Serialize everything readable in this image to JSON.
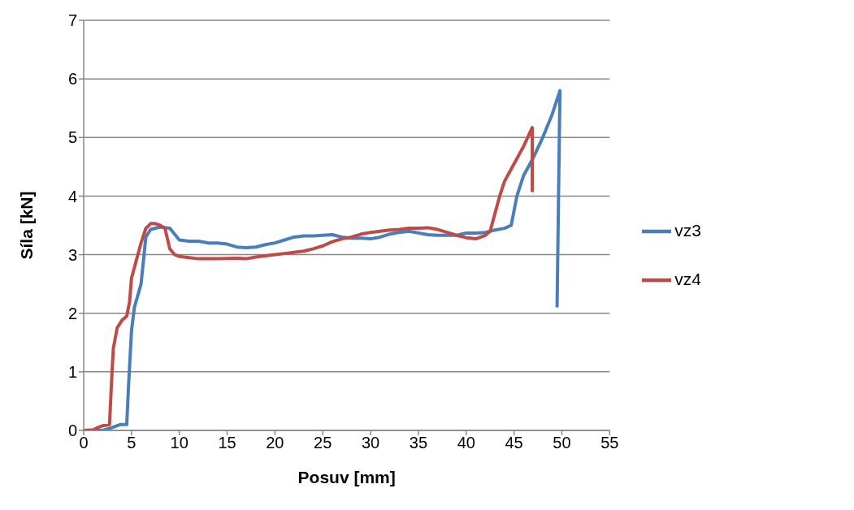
{
  "chart_data": {
    "type": "line",
    "xlabel": "Posuv [mm]",
    "ylabel": "Síla [kN]",
    "xlim": [
      0,
      55
    ],
    "xticks": [
      0,
      5,
      10,
      15,
      20,
      25,
      30,
      35,
      40,
      45,
      50,
      55
    ],
    "ylim": [
      0,
      7
    ],
    "yticks": [
      0,
      1,
      2,
      3,
      4,
      5,
      6,
      7
    ],
    "grid": "y",
    "legend": "right",
    "marker": "none",
    "line_style": "solid",
    "series": [
      {
        "name": "vz3",
        "color": "#4a7ebb",
        "x": [
          0,
          2,
          3,
          3.8,
          4.5,
          4.7,
          5,
          5.3,
          6,
          6.5,
          7,
          8,
          9,
          9.5,
          10,
          11,
          12,
          13,
          14,
          15,
          16,
          17,
          18,
          19,
          20,
          21,
          22,
          23,
          24,
          25,
          26,
          27,
          28,
          29,
          30,
          31,
          32,
          33,
          34,
          35,
          36,
          37,
          38,
          39,
          40,
          41,
          42,
          43,
          44,
          44.7,
          45.3,
          46,
          47,
          48,
          49,
          49.8,
          49.5
        ],
        "values": [
          0,
          0,
          0.05,
          0.1,
          0.1,
          0.8,
          1.7,
          2.1,
          2.5,
          3.3,
          3.43,
          3.47,
          3.45,
          3.35,
          3.25,
          3.23,
          3.23,
          3.2,
          3.2,
          3.18,
          3.13,
          3.12,
          3.13,
          3.17,
          3.2,
          3.25,
          3.3,
          3.32,
          3.32,
          3.33,
          3.34,
          3.3,
          3.28,
          3.28,
          3.27,
          3.3,
          3.35,
          3.38,
          3.4,
          3.37,
          3.34,
          3.33,
          3.33,
          3.33,
          3.37,
          3.37,
          3.38,
          3.42,
          3.45,
          3.5,
          4.0,
          4.35,
          4.65,
          5.0,
          5.4,
          5.8,
          2.1
        ]
      },
      {
        "name": "vz4",
        "color": "#be4b48",
        "x": [
          0,
          1,
          1.5,
          2,
          2.7,
          2.9,
          3.1,
          3.5,
          4,
          4.5,
          4.8,
          5,
          5.5,
          6,
          6.5,
          7,
          7.5,
          8,
          8.5,
          9,
          9.5,
          10,
          11,
          12,
          14,
          16,
          17,
          18,
          19,
          20,
          21,
          22,
          23,
          24,
          25,
          26,
          27,
          28,
          29,
          30,
          31,
          32,
          33,
          34,
          35,
          36,
          37,
          38,
          39,
          40,
          41,
          42,
          42.5,
          43,
          43.5,
          44,
          45,
          46,
          46.9,
          46.9
        ],
        "values": [
          0,
          0.01,
          0.05,
          0.08,
          0.1,
          0.8,
          1.4,
          1.75,
          1.88,
          1.95,
          2.2,
          2.6,
          2.9,
          3.2,
          3.45,
          3.53,
          3.53,
          3.5,
          3.45,
          3.1,
          3.0,
          2.97,
          2.95,
          2.93,
          2.93,
          2.94,
          2.93,
          2.96,
          2.98,
          3.0,
          3.02,
          3.04,
          3.06,
          3.1,
          3.15,
          3.22,
          3.27,
          3.3,
          3.35,
          3.38,
          3.4,
          3.42,
          3.43,
          3.45,
          3.45,
          3.46,
          3.43,
          3.38,
          3.33,
          3.29,
          3.27,
          3.33,
          3.4,
          3.7,
          4.0,
          4.25,
          4.55,
          4.85,
          5.17,
          4.07
        ]
      }
    ]
  }
}
